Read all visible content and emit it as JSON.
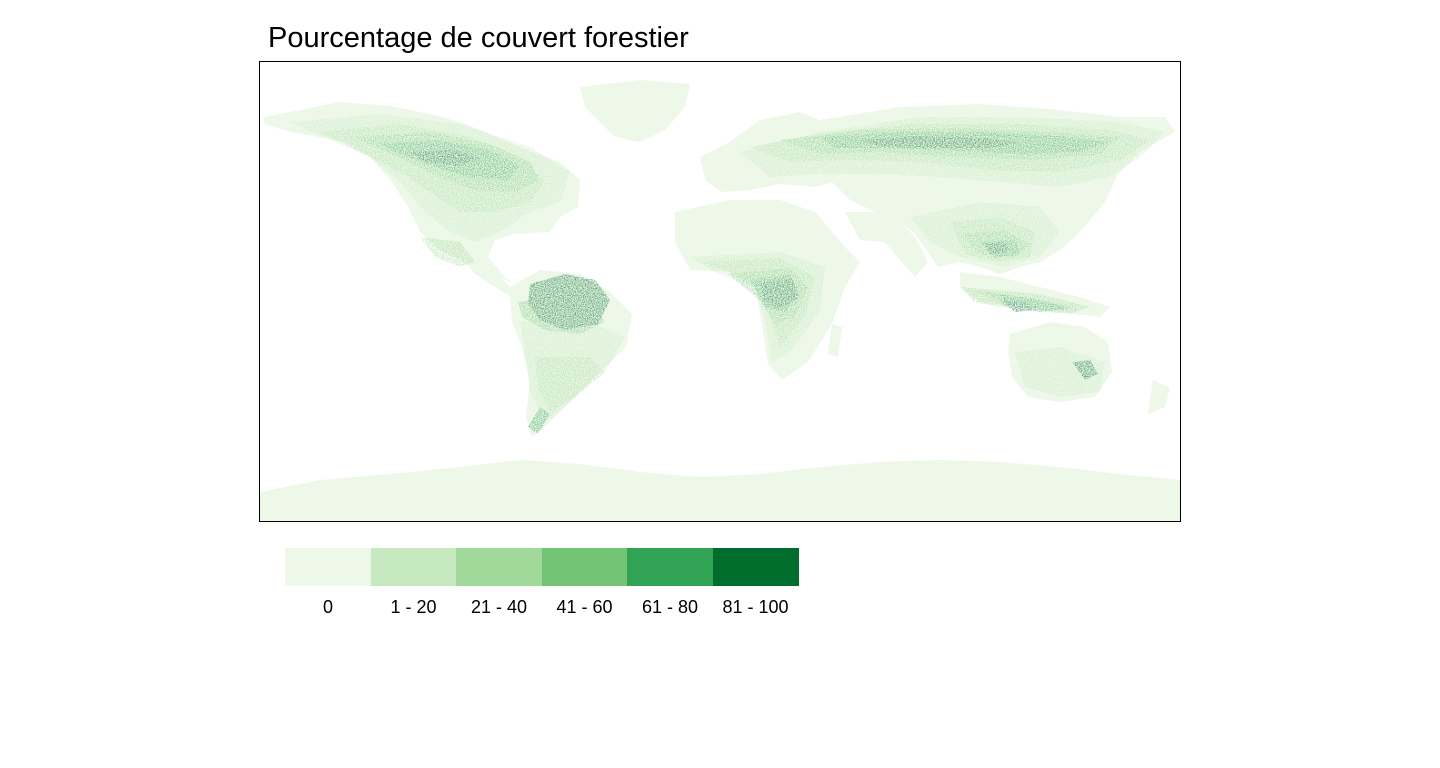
{
  "title": "Pourcentage de couvert forestier",
  "legend": {
    "classes": [
      {
        "label": "0",
        "color": "#edf8e9"
      },
      {
        "label": "1 - 20",
        "color": "#c7e9c0"
      },
      {
        "label": "21 - 40",
        "color": "#a1d99b"
      },
      {
        "label": "41 - 60",
        "color": "#74c476"
      },
      {
        "label": "61 - 80",
        "color": "#31a354"
      },
      {
        "label": "81 - 100",
        "color": "#006d2c"
      }
    ]
  }
}
